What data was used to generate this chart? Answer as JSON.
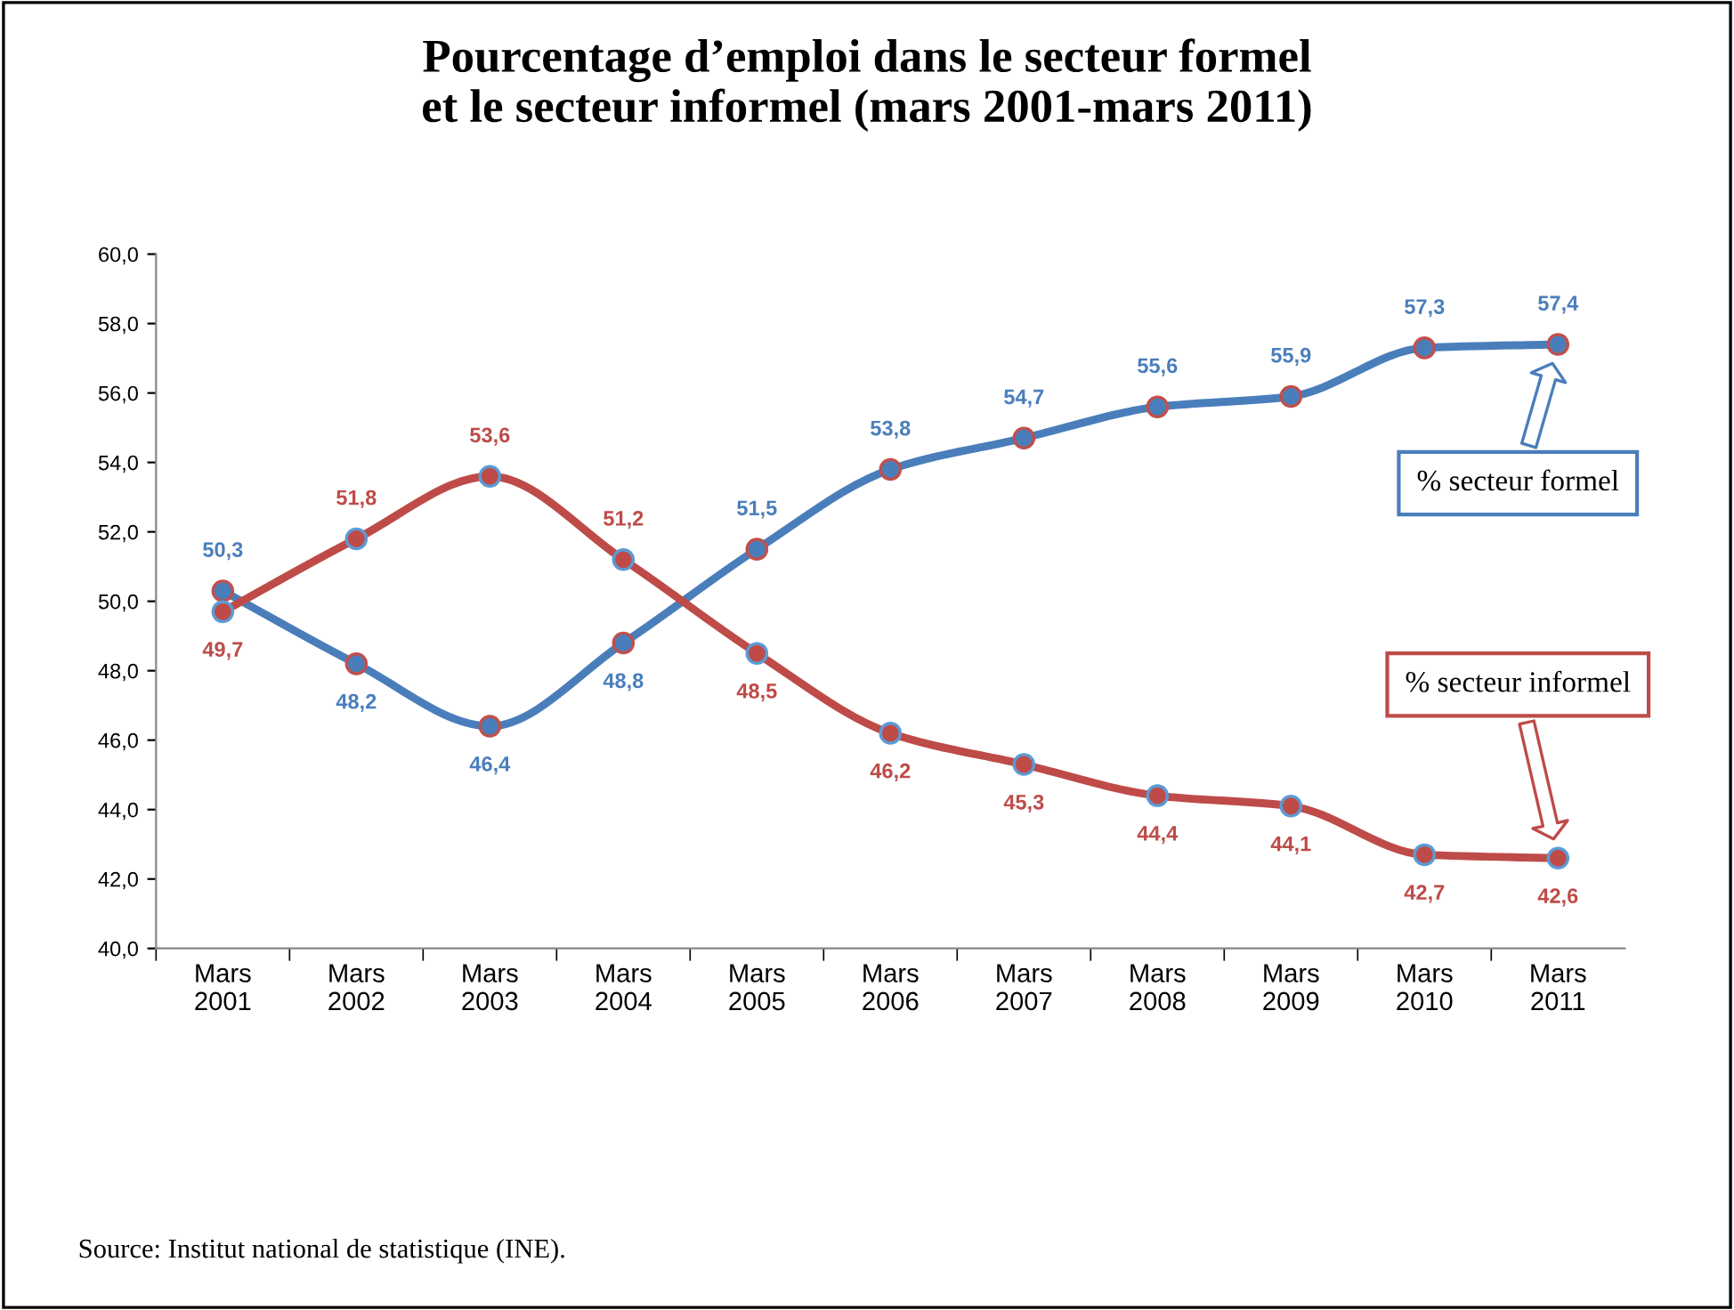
{
  "chart_data": {
    "type": "line",
    "title": "Pourcentage d’emploi dans le secteur formel\net le secteur informel (mars 2001-mars 2011)",
    "categories": [
      "Mars\n2001",
      "Mars\n2002",
      "Mars\n2003",
      "Mars\n2004",
      "Mars\n2005",
      "Mars\n2006",
      "Mars\n2007",
      "Mars\n2008",
      "Mars\n2009",
      "Mars\n2010",
      "Mars\n2011"
    ],
    "series": [
      {
        "name": "% secteur formel",
        "color": "#4a7ebb",
        "values": [
          50.3,
          48.2,
          46.4,
          48.8,
          51.5,
          53.8,
          54.7,
          55.6,
          55.9,
          57.3,
          57.4
        ]
      },
      {
        "name": "% secteur informel",
        "color": "#be4b48",
        "values": [
          49.7,
          51.8,
          53.6,
          51.2,
          48.5,
          46.2,
          45.3,
          44.4,
          44.1,
          42.7,
          42.6
        ]
      }
    ],
    "ylim": [
      40,
      60
    ],
    "yticks": [
      {
        "value": 40,
        "label": "40,0"
      },
      {
        "value": 42,
        "label": "42,0"
      },
      {
        "value": 44,
        "label": "44,0"
      },
      {
        "value": 46,
        "label": "46,0"
      },
      {
        "value": 48,
        "label": "48,0"
      },
      {
        "value": 50,
        "label": "50,0"
      },
      {
        "value": 52,
        "label": "52,0"
      },
      {
        "value": 54,
        "label": "54,0"
      },
      {
        "value": 56,
        "label": "56,0"
      },
      {
        "value": 58,
        "label": "58,0"
      },
      {
        "value": 60,
        "label": "60,0"
      }
    ],
    "value_labels": [
      [
        "50,3",
        "48,2",
        "46,4",
        "48,8",
        "51,5",
        "53,8",
        "54,7",
        "55,6",
        "55,9",
        "57,3",
        "57,4"
      ],
      [
        "49,7",
        "51,8",
        "53,6",
        "51,2",
        "48,5",
        "46,2",
        "45,3",
        "44,4",
        "44,1",
        "42,7",
        "42,6"
      ]
    ],
    "marker": "circle",
    "line_style": "solid",
    "grid": false,
    "legend": false,
    "annotations": [
      "Source: Institut national de statistique (INE)."
    ]
  }
}
